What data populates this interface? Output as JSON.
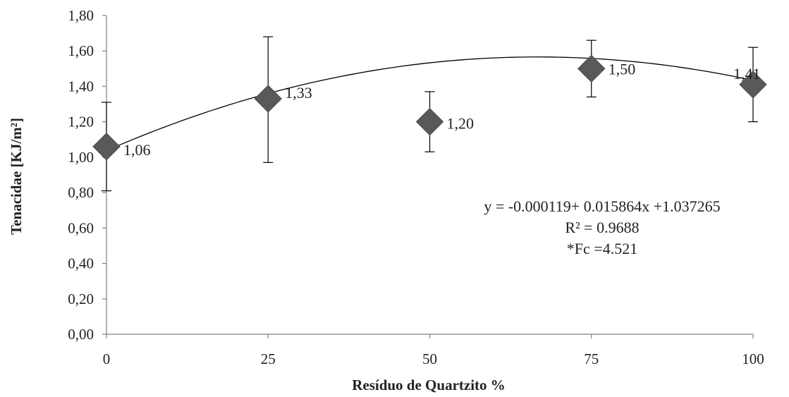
{
  "chart_data": {
    "type": "scatter",
    "title": "",
    "xlabel": "Resíduo de Quartzito %",
    "ylabel": "Tenacidae [KJ/m²]",
    "x": [
      0,
      25,
      50,
      75,
      100
    ],
    "x_tick_labels": [
      "0",
      "25",
      "50",
      "75",
      "100"
    ],
    "y_tick_labels": [
      "0,00",
      "0,20",
      "0,40",
      "0,60",
      "0,80",
      "1,00",
      "1,20",
      "1,40",
      "1,60",
      "1,80"
    ],
    "xlim": [
      0,
      100
    ],
    "ylim": [
      0,
      1.8
    ],
    "grid": false,
    "legend": "none",
    "series": [
      {
        "values": [
          1.06,
          1.33,
          1.2,
          1.5,
          1.41
        ],
        "data_labels": [
          "1,06",
          "1,33",
          "1,20",
          "1,50",
          "1,41"
        ],
        "error_upper": [
          1.31,
          1.68,
          1.37,
          1.66,
          1.62
        ],
        "error_lower": [
          0.81,
          0.97,
          1.03,
          1.34,
          1.2
        ],
        "marker": "diamond",
        "color": "#595959"
      }
    ],
    "trendline": {
      "type": "polynomial",
      "coefficients": {
        "a": -0.000119,
        "b": 0.015864,
        "c": 1.037265
      },
      "color": "#000000"
    },
    "annotations": [
      "y = -0.000119+ 0.015864x +1.037265",
      "R² = 0.9688",
      "*Fc =4.521"
    ]
  }
}
